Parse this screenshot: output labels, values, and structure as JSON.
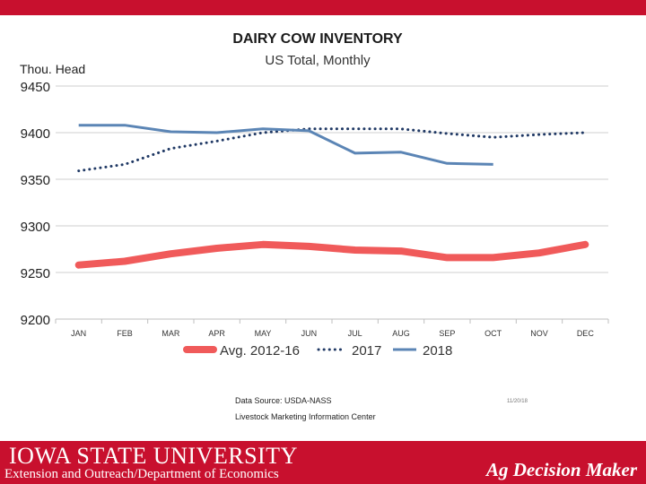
{
  "chart_data": {
    "type": "line",
    "title": "DAIRY COW INVENTORY",
    "subtitle": "US Total, Monthly",
    "ylabel": "Thou. Head",
    "xlabel": "",
    "ylim": [
      9200,
      9450
    ],
    "yticks": [
      9200,
      9250,
      9300,
      9350,
      9400,
      9450
    ],
    "grid": true,
    "categories": [
      "JAN",
      "FEB",
      "MAR",
      "APR",
      "MAY",
      "JUN",
      "JUL",
      "AUG",
      "SEP",
      "OCT",
      "NOV",
      "DEC"
    ],
    "series": [
      {
        "name": "Avg. 2012-16",
        "style": "thick",
        "color": "#f05a5a",
        "values": [
          9258,
          9262,
          9270,
          9276,
          9280,
          9278,
          9274,
          9273,
          9266,
          9266,
          9271,
          9280
        ]
      },
      {
        "name": "2017",
        "style": "dotted",
        "color": "#1f3864",
        "values": [
          9359,
          9366,
          9383,
          9391,
          9400,
          9404,
          9404,
          9404,
          9399,
          9395,
          9398,
          9400
        ]
      },
      {
        "name": "2018",
        "style": "solid",
        "color": "#5b85b5",
        "values": [
          9408,
          9408,
          9401,
          9400,
          9404,
          9402,
          9378,
          9379,
          9367,
          9366,
          null,
          null
        ]
      }
    ],
    "legend_position": "bottom"
  },
  "source": {
    "line1": "Data Source:  USDA-NASS",
    "line2": "Livestock Marketing Information Center",
    "date": "11/20/18"
  },
  "footer": {
    "university": "IOWA STATE UNIVERSITY",
    "subtitle": "Extension and Outreach/Department of Economics",
    "brand": "Ag Decision Maker"
  }
}
